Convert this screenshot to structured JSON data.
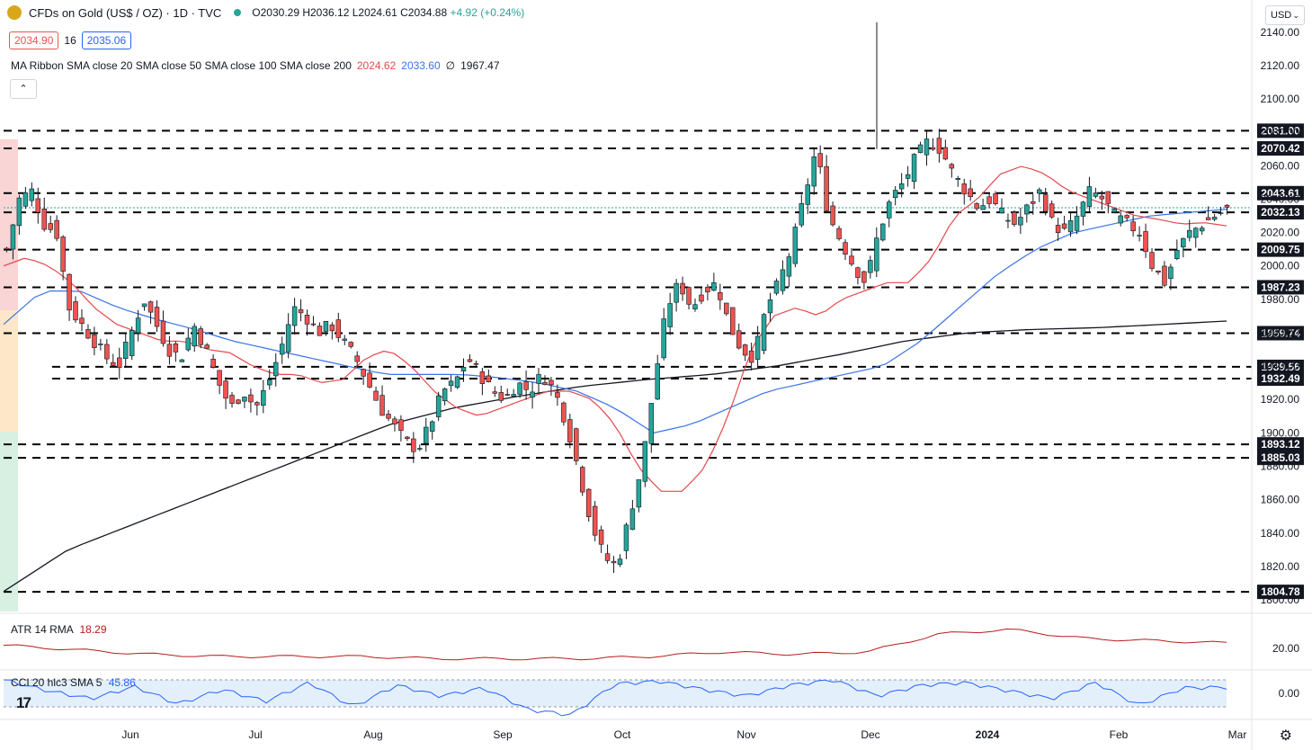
{
  "header": {
    "symbol": "CFDs on Gold (US$ / OZ) · 1D · TVC",
    "ohlc": "O2030.29 H2036.12 L2024.61 C2034.88",
    "change": "+4.92 (+0.24%)",
    "sell_price": "2034.90",
    "spread": "16",
    "buy_price": "2035.06"
  },
  "ma_ribbon": {
    "label": "MA Ribbon SMA close 20 SMA close 50 SMA close 100 SMA close 200",
    "v1": "2024.62",
    "v2": "2033.60",
    "v3": "∅",
    "v4": "1967.47"
  },
  "atr": {
    "label": "ATR 14 RMA",
    "value": "18.29",
    "tick": "20.00"
  },
  "cci": {
    "label": "CCI 20 hlc3 SMA 5",
    "value": "45.86",
    "tick": "0.00"
  },
  "currency": "USD",
  "icons": {
    "symbol": "gold-coin-icon",
    "live": "live-dot-icon",
    "collapse": "chevron-up-icon",
    "settings": "gear-icon",
    "logo": "tradingview-logo",
    "currency_menu": "chevron-down-icon"
  },
  "colors": {
    "up": "#26a69a",
    "down": "#ef5350",
    "sma20": "#e5484d",
    "sma50": "#3a73e8",
    "sma200": "#131722",
    "atr": "#b71c1c",
    "cci": "#2962ff"
  },
  "chart_data": {
    "type": "candlestick",
    "title": "CFDs on Gold (US$ / OZ) · 1D · TVC",
    "x_labels": [
      "Jun",
      "Jul",
      "Aug",
      "Sep",
      "Oct",
      "Nov",
      "Dec",
      "2024",
      "Feb",
      "Mar"
    ],
    "y_ticks": [
      "2140.00",
      "2120.00",
      "2100.00",
      "2080.00",
      "2060.00",
      "2040.00",
      "2020.00",
      "2000.00",
      "1980.00",
      "1960.00",
      "1940.00",
      "1920.00",
      "1900.00",
      "1880.00",
      "1860.00",
      "1840.00",
      "1820.00",
      "1800.00"
    ],
    "ylim": [
      1793,
      2155
    ],
    "levels": [
      2081.0,
      2070.42,
      2043.61,
      2032.13,
      2009.75,
      1987.23,
      1959.74,
      1939.56,
      1932.49,
      1893.12,
      1885.03,
      1804.78
    ],
    "level_labels": [
      "2081.00",
      "2070.42",
      "2043.61",
      "2032.13",
      "2009.75",
      "1987.23",
      "1959.74",
      "1939.56",
      "1932.49",
      "1893.12",
      "1885.03",
      "1804.78"
    ],
    "close_path": [
      2010,
      2040,
      2045,
      2025,
      2020,
      1975,
      1965,
      1955,
      1945,
      1940,
      1960,
      1980,
      1965,
      1950,
      1945,
      1965,
      1950,
      1930,
      1915,
      1925,
      1915,
      1930,
      1950,
      1975,
      1970,
      1960,
      1965,
      1955,
      1945,
      1930,
      1915,
      1905,
      1895,
      1890,
      1905,
      1925,
      1930,
      1945,
      1935,
      1925,
      1920,
      1930,
      1925,
      1935,
      1925,
      1905,
      1875,
      1845,
      1825,
      1820,
      1850,
      1880,
      1930,
      1975,
      1990,
      1975,
      1985,
      1990,
      1965,
      1950,
      1945,
      1975,
      1990,
      2010,
      2040,
      2070,
      2030,
      2015,
      2000,
      1990,
      2020,
      2040,
      2050,
      2065,
      2075,
      2070,
      2055,
      2045,
      2035,
      2040,
      2030,
      2025,
      2035,
      2045,
      2025,
      2020,
      2030,
      2045,
      2040,
      2030,
      2025,
      2020,
      2000,
      1990,
      2010,
      2020,
      2025,
      2030,
      2034
    ],
    "sma20": [
      2000,
      2005,
      2000,
      1990,
      1975,
      1965,
      1960,
      1955,
      1955,
      1950,
      1948,
      1940,
      1935,
      1935,
      1930,
      1932,
      1945,
      1950,
      1940,
      1925,
      1915,
      1910,
      1915,
      1920,
      1925,
      1925,
      1920,
      1905,
      1880,
      1865,
      1865,
      1880,
      1910,
      1950,
      1970,
      1975,
      1970,
      1980,
      1985,
      1990,
      1990,
      2005,
      2030,
      2040,
      2055,
      2060,
      2055,
      2045,
      2040,
      2035,
      2030,
      2028,
      2025,
      2026,
      2024
    ],
    "sma50": [
      1965,
      1985,
      1985,
      1975,
      1968,
      1962,
      1955,
      1950,
      1945,
      1940,
      1935,
      1935,
      1935,
      1933,
      1930,
      1925,
      1915,
      1900,
      1905,
      1915,
      1925,
      1930,
      1935,
      1940,
      1955,
      1975,
      1995,
      2010,
      2020,
      2025,
      2030,
      2032,
      2034
    ],
    "sma200": [
      1805,
      1830,
      1845,
      1860,
      1875,
      1890,
      1905,
      1915,
      1922,
      1928,
      1932,
      1935,
      1940,
      1947,
      1955,
      1960,
      1962,
      1963,
      1965,
      1967
    ],
    "atr": [
      17,
      15,
      13,
      12,
      12,
      12,
      11,
      11,
      11,
      12,
      14,
      13,
      14,
      22,
      24,
      20,
      19,
      18
    ],
    "cci": [
      100,
      20,
      -40,
      50,
      -80,
      30,
      -60,
      80,
      -100,
      60,
      -20,
      40,
      -120,
      -160,
      70,
      90,
      30,
      -20,
      60,
      100,
      -20,
      60,
      80,
      20,
      -40,
      80,
      -90,
      40,
      45
    ]
  }
}
